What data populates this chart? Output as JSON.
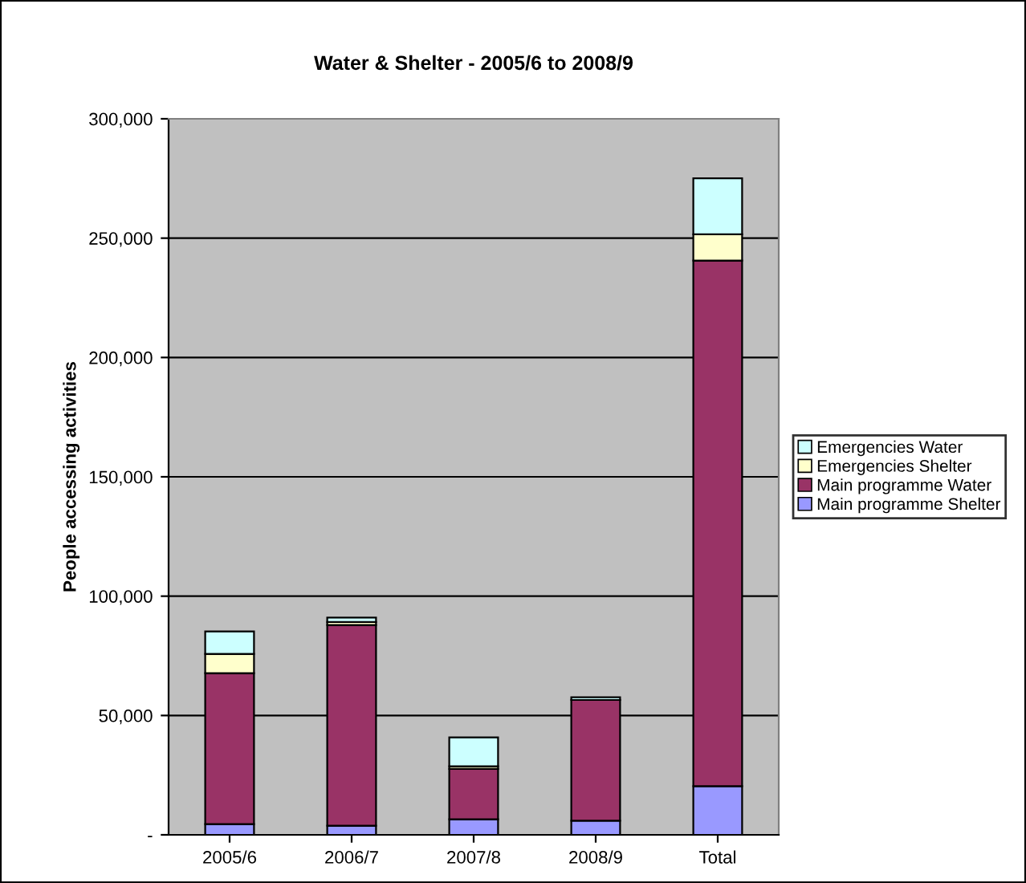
{
  "chart_data": {
    "type": "bar",
    "title": "Water & Shelter - 2005/6 to 2008/9",
    "ylabel": "People accessing activities",
    "categories": [
      "2005/6",
      "2006/7",
      "2007/8",
      "2008/9",
      "Total"
    ],
    "stacked": true,
    "series": [
      {
        "name": "Main programme Shelter",
        "color": "#9999ff",
        "values": [
          4500,
          3800,
          6500,
          5900,
          20400
        ]
      },
      {
        "name": "Main programme Water",
        "color": "#993366",
        "values": [
          63200,
          84100,
          21100,
          50600,
          220200
        ]
      },
      {
        "name": "Emergencies Shelter",
        "color": "#ffffcc",
        "values": [
          8100,
          1300,
          1100,
          null,
          11000
        ]
      },
      {
        "name": "Emergencies Water",
        "color": "#ccffff",
        "values": [
          9400,
          1800,
          12100,
          1100,
          23500
        ]
      }
    ],
    "ylim": [
      0,
      300000
    ],
    "yticks": [
      {
        "value": 0,
        "label": "-"
      },
      {
        "value": 50000,
        "label": "50,000"
      },
      {
        "value": 100000,
        "label": "100,000"
      },
      {
        "value": 150000,
        "label": "150,000"
      },
      {
        "value": 200000,
        "label": "200,000"
      },
      {
        "value": 250000,
        "label": "250,000"
      },
      {
        "value": 300000,
        "label": "300,000"
      }
    ],
    "grid": "y",
    "legend": "right"
  }
}
